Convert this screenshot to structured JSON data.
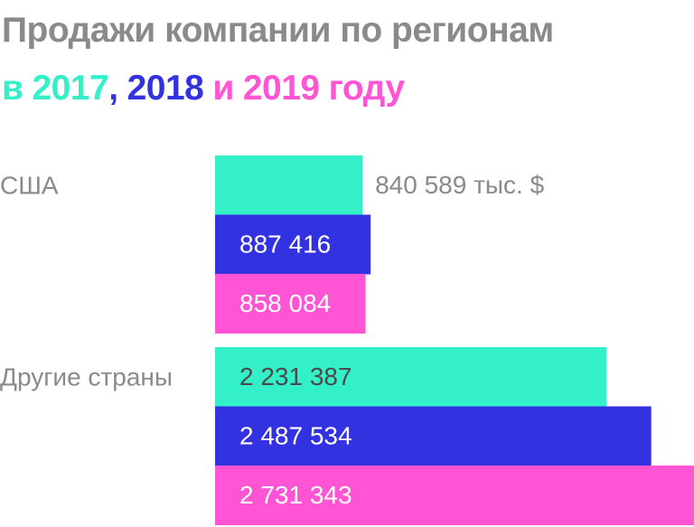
{
  "chart_data": {
    "type": "bar",
    "orientation": "horizontal",
    "title": "Продажи компании по регионам",
    "subtitle_connectors": [
      "в",
      ",",
      "и",
      "году"
    ],
    "categories": [
      "США",
      "Другие страны"
    ],
    "series": [
      {
        "name": "2017",
        "color": "#33f0c8",
        "values": [
          840589,
          2231387
        ],
        "value_labels": [
          "840 589 тыс. $",
          "2 231 387"
        ]
      },
      {
        "name": "2018",
        "color": "#3232e0",
        "values": [
          887416,
          2487534
        ],
        "value_labels": [
          "887 416",
          "2 487 534"
        ]
      },
      {
        "name": "2019",
        "color": "#ff55d4",
        "values": [
          858084,
          2731343
        ],
        "value_labels": [
          "858 084",
          "2 731 343"
        ]
      }
    ],
    "xlim": [
      0,
      2731343
    ]
  }
}
